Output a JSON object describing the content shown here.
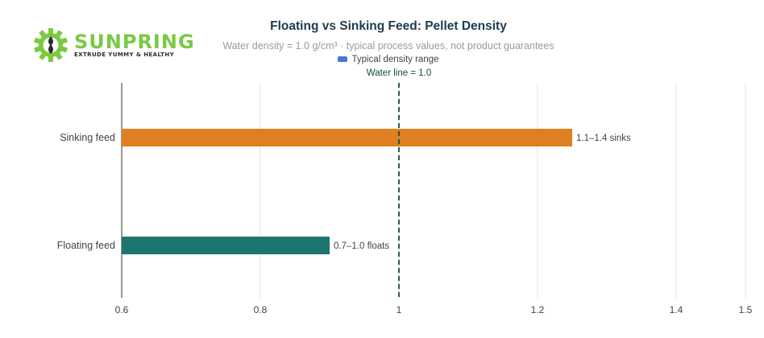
{
  "logo": {
    "brand_text": "SUNPRING",
    "tagline": "EXTRUDE YUMMY & HEALTHY",
    "color_dark": "#2b2b2b",
    "color_green": "#7ac943"
  },
  "colors": {
    "title": "#1f3b4d",
    "subtitle": "#9a9a9a",
    "sinking": "#e07f22",
    "floating": "#1c756e",
    "water_line": "#0f4d3c",
    "legend_swatch": "#4f74d9",
    "grid": "#e3e3e3",
    "axis_text": "#444444"
  },
  "chart_data": {
    "type": "bar",
    "title": "Floating vs Sinking Feed: Pellet Density",
    "subtitle": "Water density = 1.0 g/cm³ · typical process values, not product guarantees",
    "legend": [
      {
        "label": "Typical density range"
      }
    ],
    "orientation": "horizontal",
    "categories": [
      "Sinking feed",
      "Floating feed"
    ],
    "values": [
      1.25,
      0.9
    ],
    "value_labels": [
      "1.1–1.4  sinks",
      "0.7–1.0  floats"
    ],
    "xlim": [
      0.6,
      1.5
    ],
    "x_ticks": [
      0.6,
      0.8,
      1,
      1.2,
      1.4,
      1.5
    ],
    "x_tick_labels": [
      "0.6",
      "0.8",
      "1",
      "1.2",
      "1.4",
      "1.5"
    ],
    "reference_line": {
      "value": 1.0,
      "label": "Water line = 1.0"
    },
    "grid": true
  }
}
